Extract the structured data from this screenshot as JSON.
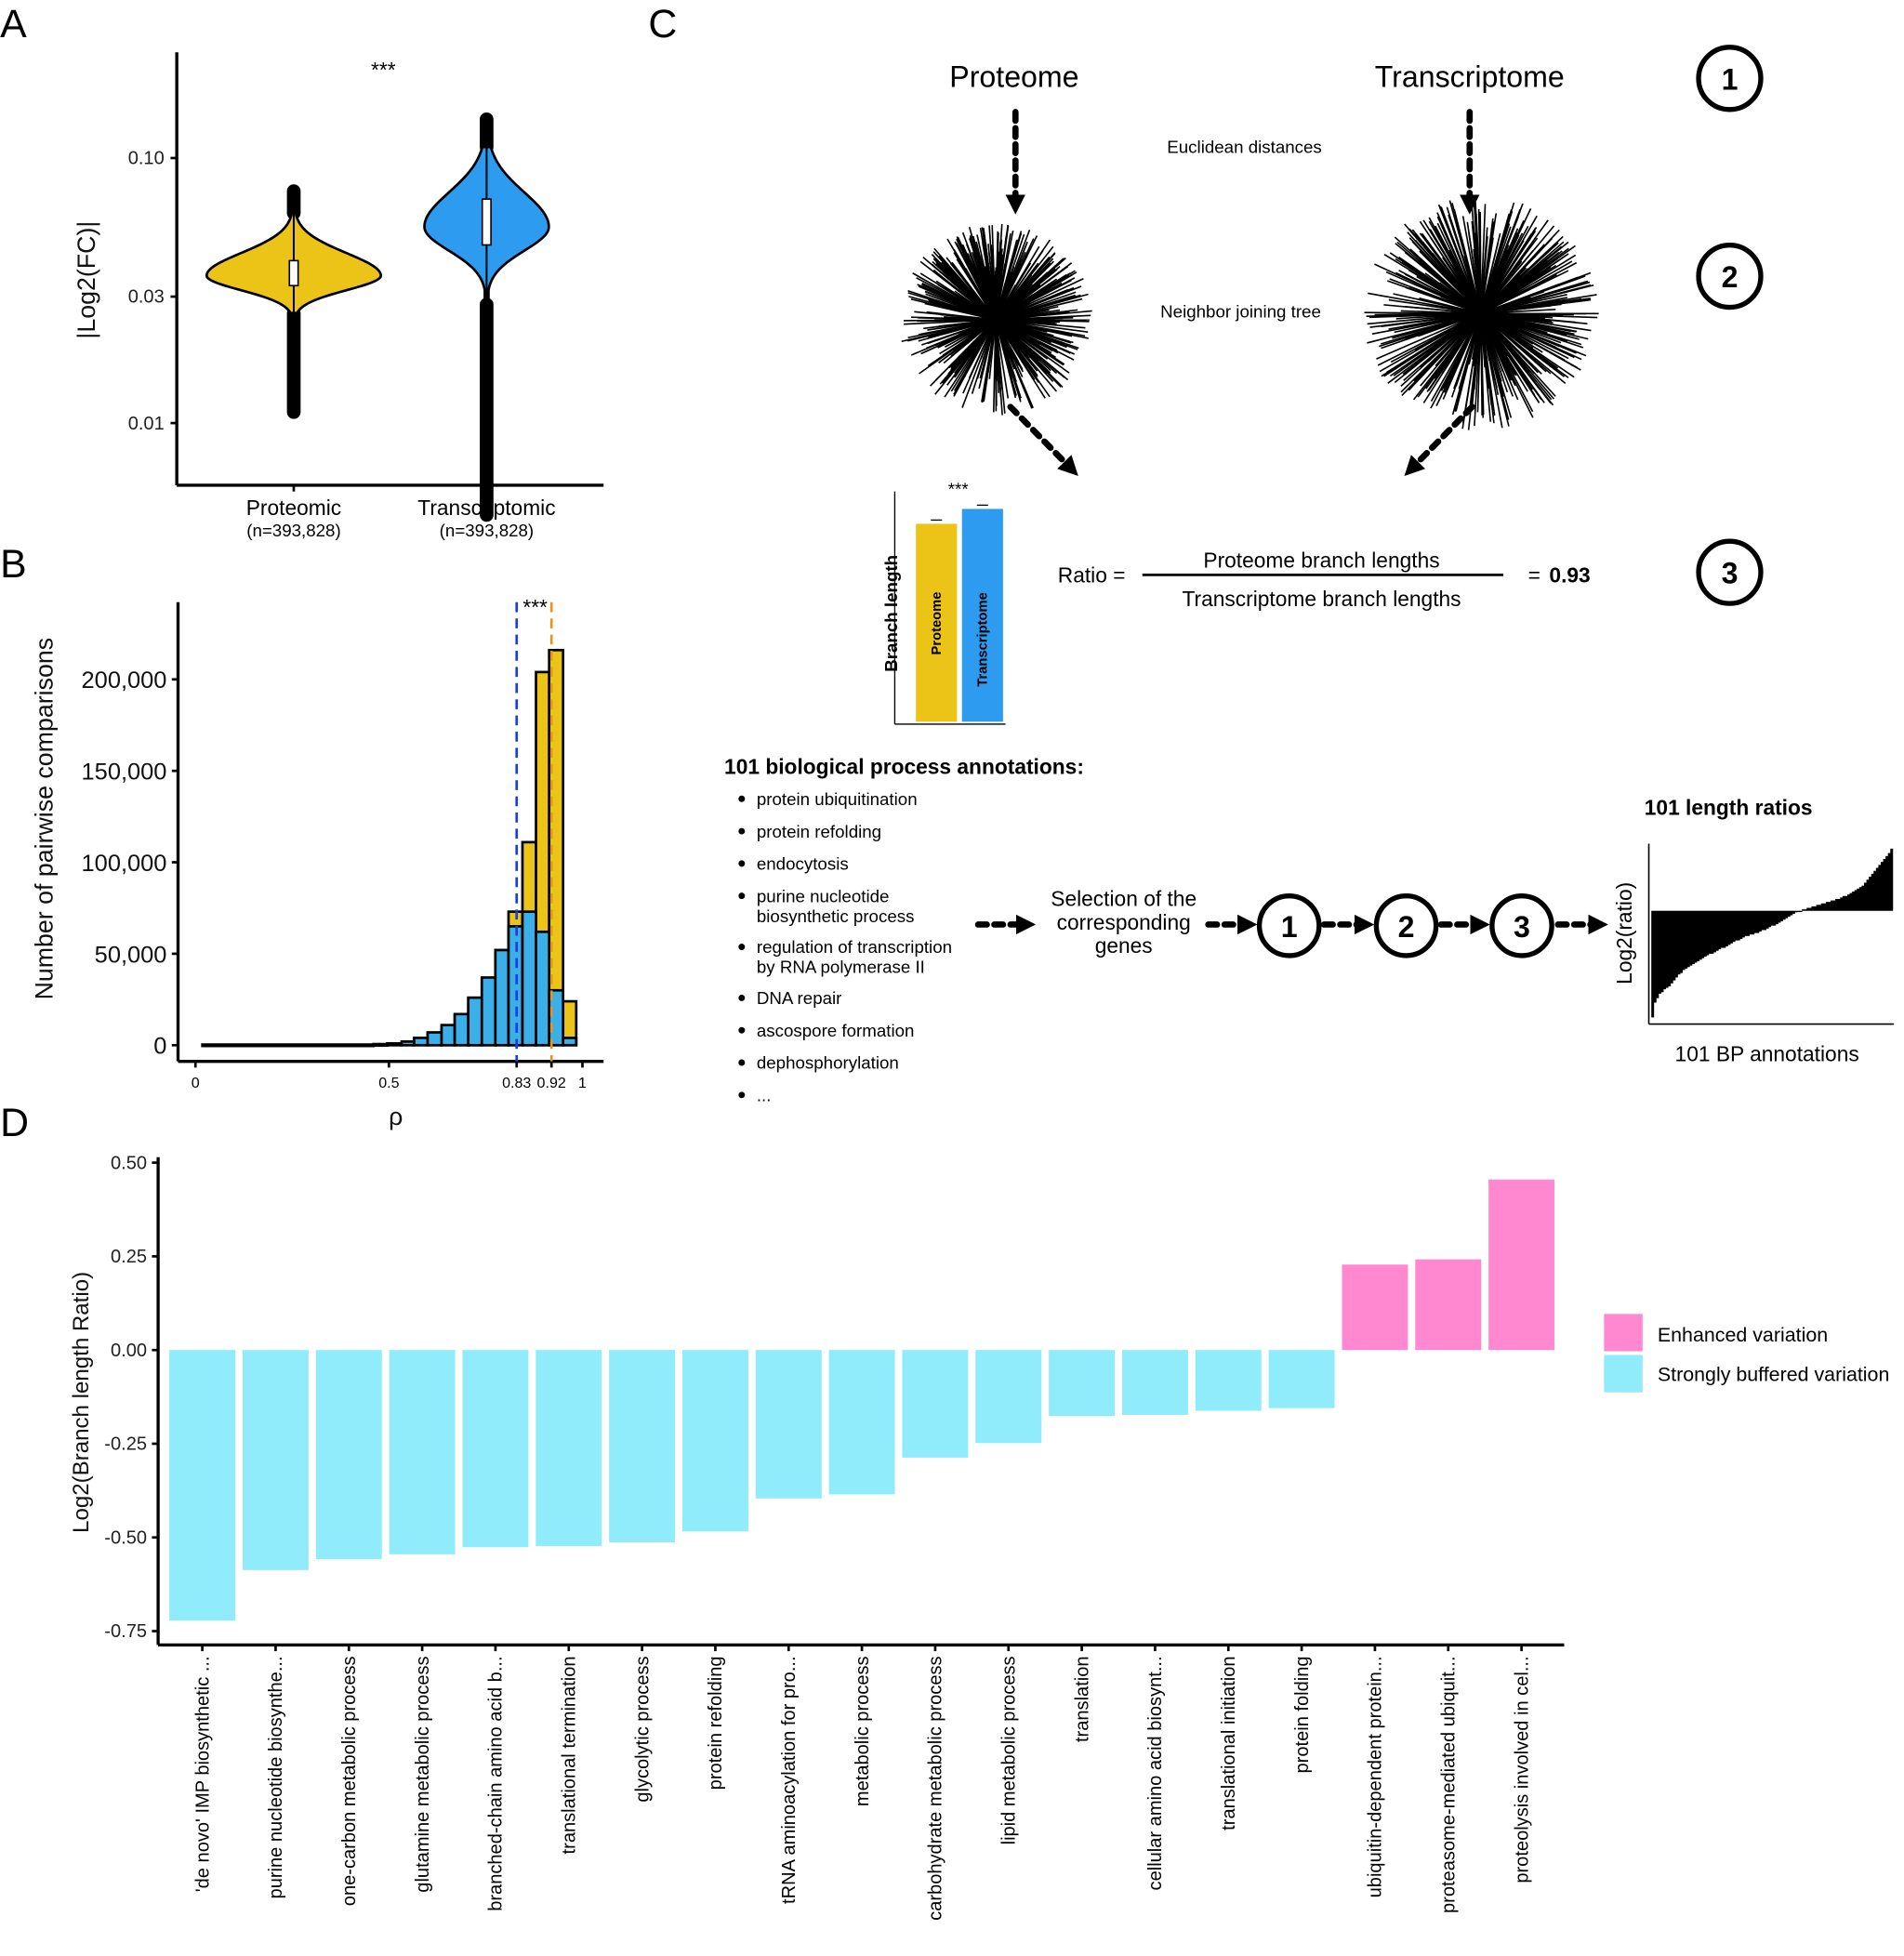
{
  "panels": {
    "a": "A",
    "b": "B",
    "c": "C",
    "d": "D"
  },
  "colors": {
    "proteomic_yellow": "#EBC417",
    "transcriptomic_blue": "#2D9BF0",
    "hist_blue": "#3AAFE8",
    "median_blue_line": "#1A3FE0",
    "median_orange_line": "#E8941A",
    "enhanced_pink": "#FF88D0",
    "buffered_cyan": "#90EBFB"
  },
  "chart_data": [
    {
      "id": "A",
      "type": "violin",
      "ylabel": "|Log2(FC)|",
      "yscale": "log10",
      "yticks": [
        "0.10",
        "0.03",
        "0.01"
      ],
      "ytick_values": [
        0.1,
        0.03,
        0.01
      ],
      "significance": "***",
      "categories": [
        {
          "label": "Proteomic",
          "n": "(n=393,828)",
          "median": 0.037,
          "q1": 0.033,
          "q3": 0.041,
          "body_min": 0.026,
          "body_max": 0.062,
          "min": 0.011,
          "max": 0.075,
          "mode": 0.036
        },
        {
          "label": "Transcriptomic",
          "n": "(n=393,828)",
          "median": 0.056,
          "q1": 0.047,
          "q3": 0.07,
          "body_min": 0.028,
          "body_max": 0.11,
          "min": 0.0045,
          "max": 0.14,
          "mode": 0.055
        }
      ]
    },
    {
      "id": "B",
      "type": "bar",
      "subtype": "overlaid histogram",
      "xlabel": "ρ",
      "ylabel": "Number of pairwise comparisons",
      "xlim": [
        0,
        1
      ],
      "ylim": [
        0,
        225000
      ],
      "xticks": [
        "0",
        "0.5",
        "0.83",
        "0.92",
        "1"
      ],
      "xtick_values": [
        0,
        0.5,
        0.83,
        0.92,
        1
      ],
      "yticks": [
        "0",
        "50,000",
        "100,000",
        "150,000",
        "200,000"
      ],
      "ytick_values": [
        0,
        50000,
        100000,
        150000,
        200000
      ],
      "significance": "***",
      "median_lines": [
        {
          "value": 0.83,
          "color": "#1A3FE0"
        },
        {
          "value": 0.92,
          "color": "#E8941A"
        }
      ],
      "bin_edges": [
        0.018,
        0.46,
        0.496,
        0.533,
        0.565,
        0.6,
        0.636,
        0.67,
        0.705,
        0.74,
        0.775,
        0.809,
        0.845,
        0.88,
        0.914,
        0.95,
        0.984
      ],
      "series": [
        {
          "color": "#EBC417",
          "values": [
            300,
            500,
            900,
            1800,
            3500,
            6500,
            10500,
            16500,
            25500,
            36500,
            52000,
            73000,
            111000,
            204000,
            216000,
            24000
          ]
        },
        {
          "color": "#3AAFE8",
          "values": [
            300,
            600,
            1000,
            2000,
            4000,
            7000,
            11000,
            17000,
            26000,
            37000,
            52000,
            65000,
            73000,
            62000,
            30000,
            4000
          ]
        }
      ]
    },
    {
      "id": "C-inset",
      "type": "bar",
      "ylabel": "Branch length",
      "categories": [
        "Proteome",
        "Transcriptome"
      ],
      "values": [
        0.93,
        1.0
      ],
      "significance": "***"
    },
    {
      "id": "C-ratios",
      "type": "bar",
      "title": "101 length ratios",
      "xlabel": "101 BP annotations",
      "ylabel": "Log2(ratio)",
      "values": [
        -0.72,
        -0.62,
        -0.59,
        -0.56,
        -0.55,
        -0.53,
        -0.52,
        -0.51,
        -0.49,
        -0.47,
        -0.45,
        -0.43,
        -0.42,
        -0.4,
        -0.39,
        -0.38,
        -0.37,
        -0.36,
        -0.35,
        -0.34,
        -0.33,
        -0.32,
        -0.31,
        -0.3,
        -0.29,
        -0.29,
        -0.28,
        -0.27,
        -0.26,
        -0.25,
        -0.25,
        -0.24,
        -0.23,
        -0.22,
        -0.21,
        -0.2,
        -0.2,
        -0.19,
        -0.18,
        -0.17,
        -0.17,
        -0.16,
        -0.16,
        -0.15,
        -0.15,
        -0.14,
        -0.13,
        -0.13,
        -0.12,
        -0.11,
        -0.1,
        -0.1,
        -0.09,
        -0.08,
        -0.07,
        -0.06,
        -0.05,
        -0.04,
        -0.03,
        -0.02,
        -0.01,
        0.0,
        0.0,
        0.01,
        0.01,
        0.02,
        0.02,
        0.03,
        0.03,
        0.04,
        0.04,
        0.05,
        0.05,
        0.06,
        0.06,
        0.07,
        0.07,
        0.08,
        0.08,
        0.09,
        0.1,
        0.1,
        0.11,
        0.12,
        0.13,
        0.14,
        0.15,
        0.16,
        0.17,
        0.19,
        0.21,
        0.23,
        0.25,
        0.27,
        0.29,
        0.31,
        0.33,
        0.35,
        0.37,
        0.39,
        0.42
      ]
    },
    {
      "id": "D",
      "type": "bar",
      "ylabel": "Log2(Branch length Ratio)",
      "ylim": [
        -0.78,
        0.52
      ],
      "yticks": [
        "0.50",
        "0.25",
        "0.00",
        "-0.25",
        "-0.50",
        "-0.75"
      ],
      "ytick_values": [
        0.5,
        0.25,
        0,
        -0.25,
        -0.5,
        -0.75
      ],
      "legend": {
        "placement": "right",
        "entries": [
          {
            "label": "Enhanced variation",
            "color": "#FF88D0"
          },
          {
            "label": "Strongly buffered variation",
            "color": "#90EBFB"
          }
        ]
      },
      "categories": [
        "'de novo' IMP biosynthetic ...",
        "purine nucleotide biosynthe...",
        "one-carbon metabolic process",
        "glutamine metabolic process",
        "branched-chain amino acid b...",
        "translational termination",
        "glycolytic process",
        "protein refolding",
        "tRNA aminoacylation for pro...",
        "metabolic process",
        "carbohydrate metabolic process",
        "lipid metabolic process",
        "translation",
        "cellular amino acid biosynt...",
        "translational initiation",
        "protein folding",
        "ubiquitin-dependent protein...",
        "proteasome-mediated ubiquit...",
        "proteolysis involved in cel..."
      ],
      "values": [
        -0.722,
        -0.587,
        -0.558,
        -0.545,
        -0.526,
        -0.523,
        -0.513,
        -0.484,
        -0.396,
        -0.385,
        -0.287,
        -0.248,
        -0.176,
        -0.173,
        -0.162,
        -0.155,
        0.228,
        0.242,
        0.455
      ],
      "groups": [
        "buffered",
        "buffered",
        "buffered",
        "buffered",
        "buffered",
        "buffered",
        "buffered",
        "buffered",
        "buffered",
        "buffered",
        "buffered",
        "buffered",
        "buffered",
        "buffered",
        "buffered",
        "buffered",
        "enhanced",
        "enhanced",
        "enhanced"
      ]
    }
  ],
  "workflow": {
    "proteome": "Proteome",
    "transcriptome": "Transcriptome",
    "step1": "1",
    "step2": "2",
    "step3": "3",
    "euclidean": "Euclidean distances",
    "nj_tree": "Neighbor joining tree",
    "ratio_label": "Ratio =",
    "numerator": "Proteome branch lengths",
    "denominator": "Transcriptome branch lengths",
    "equals": "=",
    "ratio_value": "0.93",
    "annotations_title": "101 biological process annotations:",
    "annotations": [
      [
        "protein ubiquitination"
      ],
      [
        "protein refolding"
      ],
      [
        "endocytosis"
      ],
      [
        "purine nucleotide",
        "biosynthetic process"
      ],
      [
        "regulation of transcription",
        "by RNA polymerase II"
      ],
      [
        "DNA repair"
      ],
      [
        "ascospore formation"
      ],
      [
        "dephosphorylation"
      ],
      [
        "..."
      ]
    ],
    "selection": [
      "Selection of the",
      "corresponding",
      "genes"
    ]
  }
}
